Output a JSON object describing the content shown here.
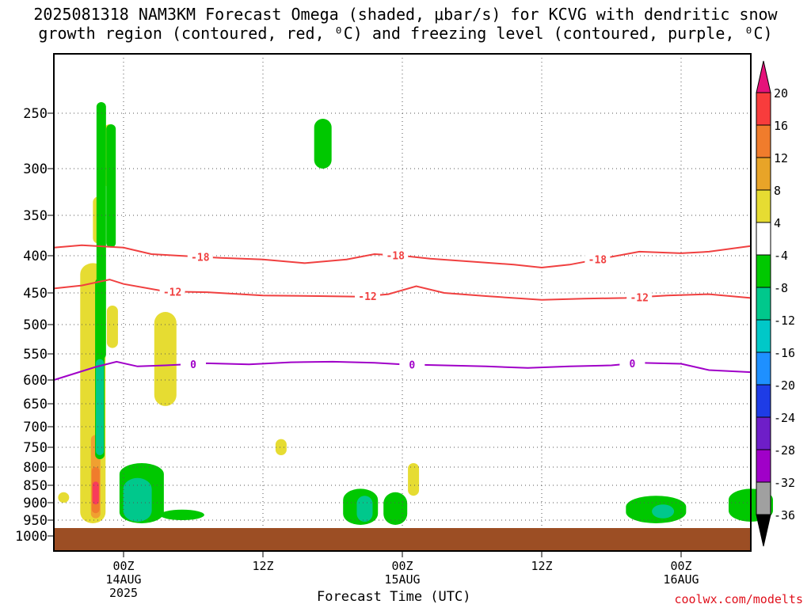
{
  "title": {
    "line1": "2025081318 NAM3KM Forecast Omega (shaded, μbar/s) for KCVG with dendritic snow",
    "line2": "growth region (contoured, red, ⁰C) and freezing level (contoured, purple, ⁰C)"
  },
  "credit": "coolwx.com/modelts",
  "chart_data": {
    "type": "heatmap",
    "xlabel": "Forecast Time (UTC)",
    "x_range_hours": [
      -5,
      45
    ],
    "x_ticks": [
      {
        "hour": 0,
        "label": "00Z",
        "sub1": "14AUG",
        "sub2": "2025"
      },
      {
        "hour": 10,
        "label": "12Z",
        "sub1": "",
        "sub2": ""
      },
      {
        "hour": 20,
        "label": "00Z",
        "sub1": "15AUG",
        "sub2": ""
      },
      {
        "hour": 30,
        "label": "12Z",
        "sub1": "",
        "sub2": ""
      },
      {
        "hour": 40,
        "label": "00Z",
        "sub1": "16AUG",
        "sub2": ""
      }
    ],
    "y_ticks": [
      250,
      300,
      350,
      400,
      450,
      500,
      550,
      600,
      650,
      700,
      750,
      800,
      850,
      900,
      950,
      1000
    ],
    "grid": "dotted",
    "colorbar": {
      "labels": [
        "20",
        "16",
        "12",
        "8",
        "4",
        "-4",
        "-8",
        "-12",
        "-16",
        "-20",
        "-24",
        "-28",
        "-32",
        "-36"
      ],
      "colors": [
        "#e5127a",
        "#f83c3c",
        "#f07c2c",
        "#e8a428",
        "#e6dc32",
        "#ffffff",
        "#00c800",
        "#00c88c",
        "#00c8c8",
        "#1e90ff",
        "#1e3ce6",
        "#6e1ec8",
        "#a000c8",
        "#a0a0a0",
        "#000000"
      ]
    },
    "contours": [
      {
        "name": "-18",
        "color": "#f04040",
        "label": "-18",
        "points": [
          [
            -5,
            390
          ],
          [
            -3,
            387
          ],
          [
            0,
            390
          ],
          [
            2,
            398
          ],
          [
            4,
            400
          ],
          [
            7,
            403
          ],
          [
            10,
            405
          ],
          [
            13,
            410
          ],
          [
            16,
            405
          ],
          [
            18,
            398
          ],
          [
            20,
            400
          ],
          [
            22,
            404
          ],
          [
            25,
            408
          ],
          [
            28,
            412
          ],
          [
            30,
            416
          ],
          [
            32,
            412
          ],
          [
            34,
            405
          ],
          [
            37,
            395
          ],
          [
            40,
            397
          ],
          [
            42,
            395
          ],
          [
            45,
            388
          ]
        ],
        "label_hours": [
          5.5,
          19.5,
          34
        ]
      },
      {
        "name": "-12",
        "color": "#f04040",
        "label": "-12",
        "points": [
          [
            -5,
            444
          ],
          [
            -3,
            440
          ],
          [
            -1,
            432
          ],
          [
            0,
            438
          ],
          [
            3,
            448
          ],
          [
            6,
            449
          ],
          [
            10,
            454
          ],
          [
            14,
            455
          ],
          [
            17,
            456
          ],
          [
            19,
            452
          ],
          [
            21,
            441
          ],
          [
            23,
            450
          ],
          [
            26,
            455
          ],
          [
            30,
            461
          ],
          [
            33,
            459
          ],
          [
            36,
            458
          ],
          [
            39,
            454
          ],
          [
            42,
            452
          ],
          [
            45,
            458
          ]
        ],
        "label_hours": [
          3.5,
          17.5,
          37
        ]
      },
      {
        "name": "0",
        "color": "#a000c8",
        "label": "0",
        "points": [
          [
            -5,
            600
          ],
          [
            -2,
            575
          ],
          [
            -0.5,
            565
          ],
          [
            1,
            574
          ],
          [
            3,
            572
          ],
          [
            6,
            568
          ],
          [
            9,
            570
          ],
          [
            12,
            566
          ],
          [
            15,
            565
          ],
          [
            18,
            567
          ],
          [
            20,
            570
          ],
          [
            23,
            572
          ],
          [
            26,
            574
          ],
          [
            29,
            577
          ],
          [
            32,
            574
          ],
          [
            35,
            572
          ],
          [
            37,
            567
          ],
          [
            40,
            569
          ],
          [
            42,
            581
          ],
          [
            45,
            585
          ]
        ],
        "label_hours": [
          5,
          20.7,
          36.5
        ]
      }
    ],
    "surface": {
      "from_hpa": 975,
      "color": "#9c4e24"
    },
    "shaded_regions": [
      {
        "level": "8",
        "hour": -2.2,
        "p1": 410,
        "p2": 960
      },
      {
        "level": "12",
        "hour": -2.0,
        "p1": 720,
        "p2": 945
      },
      {
        "level": "16",
        "hour": -2.0,
        "p1": 800,
        "p2": 930
      },
      {
        "level": "20",
        "hour": -2.0,
        "p1": 840,
        "p2": 905
      },
      {
        "level": "4",
        "hour": -1.8,
        "p1": 330,
        "p2": 385
      },
      {
        "level": "4",
        "hour": -1.0,
        "p1": 260,
        "p2": 320
      },
      {
        "level": "4",
        "hour": -0.8,
        "p1": 470,
        "p2": 540
      },
      {
        "level": "4",
        "hour": 3.0,
        "p1": 480,
        "p2": 655
      },
      {
        "level": "4",
        "hour": 11.3,
        "p1": 730,
        "p2": 770
      },
      {
        "level": "4",
        "hour": 20.8,
        "p1": 790,
        "p2": 880
      },
      {
        "level": "4",
        "hour": -4.3,
        "p1": 870,
        "p2": 900
      },
      {
        "level": "-4",
        "hour": -1.6,
        "p1": 240,
        "p2": 560
      },
      {
        "level": "-4",
        "hour": -0.9,
        "p1": 260,
        "p2": 390
      },
      {
        "level": "-4",
        "hour": -1.7,
        "p1": 430,
        "p2": 780
      },
      {
        "level": "-8",
        "hour": -1.7,
        "p1": 560,
        "p2": 770
      },
      {
        "level": "-4",
        "hour": 1.3,
        "p1": 790,
        "p2": 960
      },
      {
        "level": "-8",
        "hour": 1.0,
        "p1": 830,
        "p2": 955
      },
      {
        "level": "-4",
        "hour": 4.2,
        "p1": 920,
        "p2": 950
      },
      {
        "level": "-4",
        "hour": 14.3,
        "p1": 255,
        "p2": 300
      },
      {
        "level": "-4",
        "hour": 17.0,
        "p1": 860,
        "p2": 965
      },
      {
        "level": "-8",
        "hour": 17.3,
        "p1": 880,
        "p2": 955
      },
      {
        "level": "-4",
        "hour": 19.5,
        "p1": 870,
        "p2": 965
      },
      {
        "level": "-4",
        "hour": 38.2,
        "p1": 880,
        "p2": 960
      },
      {
        "level": "-8",
        "hour": 38.7,
        "p1": 905,
        "p2": 945
      },
      {
        "level": "-4",
        "hour": 45.0,
        "p1": 860,
        "p2": 955
      }
    ]
  }
}
